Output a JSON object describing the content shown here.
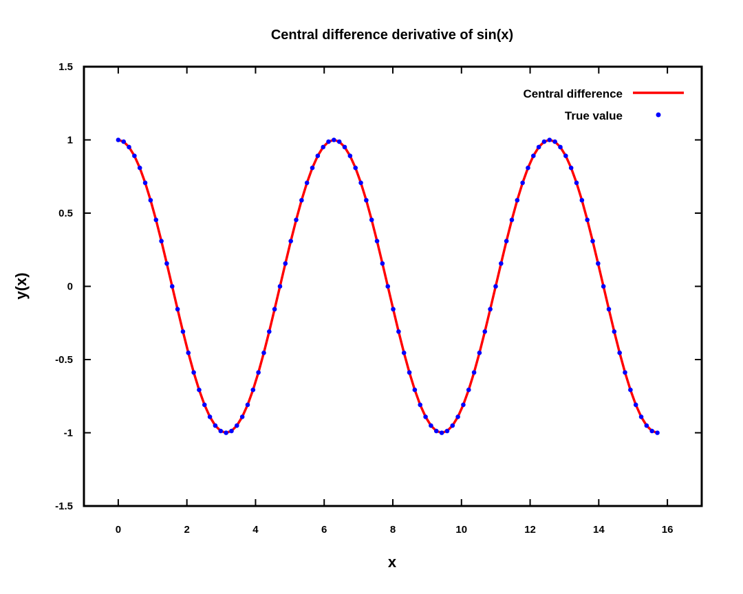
{
  "chart_data": {
    "type": "line",
    "title": "Central difference derivative of sin(x)",
    "xlabel": "x",
    "ylabel": "y(x)",
    "xlim": [
      -1,
      17
    ],
    "ylim": [
      -1.5,
      1.5
    ],
    "x_ticks": [
      "0",
      "2",
      "4",
      "6",
      "8",
      "10",
      "12",
      "14",
      "16"
    ],
    "y_ticks": [
      "1.5",
      "1",
      "0.5",
      "0",
      "-0.5",
      "-1",
      "-1.5"
    ],
    "grid": false,
    "legend_position": "top-right",
    "function_note": "y = cos(x) sampled over x from 0 to 5π (≈15.71)",
    "x_range": [
      0,
      15.708
    ],
    "series": [
      {
        "name": "Central difference",
        "style": "line",
        "color": "#ff0000",
        "x": [
          0,
          0.157,
          0.314,
          0.471,
          0.628,
          0.785,
          0.942,
          1.1,
          1.257,
          1.414,
          1.571,
          1.728,
          1.885,
          2.042,
          2.199,
          2.356,
          2.513,
          2.67,
          2.827,
          2.985,
          3.142,
          3.299,
          3.456,
          3.613,
          3.77,
          3.927,
          4.084,
          4.241,
          4.398,
          4.555,
          4.712,
          4.869,
          5.027,
          5.184,
          5.341,
          5.498,
          5.655,
          5.812,
          5.969,
          6.126,
          6.283,
          6.44,
          6.597,
          6.754,
          6.912,
          7.069,
          7.226,
          7.383,
          7.54,
          7.697,
          7.854,
          8.011,
          8.168,
          8.325,
          8.482,
          8.639,
          8.796,
          8.954,
          9.111,
          9.268,
          9.425,
          9.582,
          9.739,
          9.896,
          10.053,
          10.21,
          10.367,
          10.524,
          10.681,
          10.838,
          10.996,
          11.153,
          11.31,
          11.467,
          11.624,
          11.781,
          11.938,
          12.095,
          12.252,
          12.409,
          12.566,
          12.723,
          12.881,
          13.038,
          13.195,
          13.352,
          13.509,
          13.666,
          13.823,
          13.98,
          14.137,
          14.294,
          14.451,
          14.608,
          14.765,
          14.923,
          15.08,
          15.237,
          15.394,
          15.551,
          15.708
        ],
        "y": [
          1,
          0.988,
          0.951,
          0.891,
          0.809,
          0.707,
          0.588,
          0.454,
          0.309,
          0.156,
          0,
          -0.156,
          -0.309,
          -0.454,
          -0.588,
          -0.707,
          -0.809,
          -0.891,
          -0.951,
          -0.988,
          -1,
          -0.988,
          -0.951,
          -0.891,
          -0.809,
          -0.707,
          -0.588,
          -0.454,
          -0.309,
          -0.156,
          0,
          0.156,
          0.309,
          0.454,
          0.588,
          0.707,
          0.809,
          0.891,
          0.951,
          0.988,
          1,
          0.988,
          0.951,
          0.891,
          0.809,
          0.707,
          0.588,
          0.454,
          0.309,
          0.156,
          0,
          -0.156,
          -0.309,
          -0.454,
          -0.588,
          -0.707,
          -0.809,
          -0.891,
          -0.951,
          -0.988,
          -1,
          -0.988,
          -0.951,
          -0.891,
          -0.809,
          -0.707,
          -0.588,
          -0.454,
          -0.309,
          -0.156,
          0,
          0.156,
          0.309,
          0.454,
          0.588,
          0.707,
          0.809,
          0.891,
          0.951,
          0.988,
          1,
          0.988,
          0.951,
          0.891,
          0.809,
          0.707,
          0.588,
          0.454,
          0.309,
          0.156,
          0,
          -0.156,
          -0.309,
          -0.454,
          -0.588,
          -0.707,
          -0.809,
          -0.891,
          -0.951,
          -0.988,
          -1
        ]
      },
      {
        "name": "True value",
        "style": "points",
        "color": "#0000ff",
        "x": [
          0,
          0.157,
          0.314,
          0.471,
          0.628,
          0.785,
          0.942,
          1.1,
          1.257,
          1.414,
          1.571,
          1.728,
          1.885,
          2.042,
          2.199,
          2.356,
          2.513,
          2.67,
          2.827,
          2.985,
          3.142,
          3.299,
          3.456,
          3.613,
          3.77,
          3.927,
          4.084,
          4.241,
          4.398,
          4.555,
          4.712,
          4.869,
          5.027,
          5.184,
          5.341,
          5.498,
          5.655,
          5.812,
          5.969,
          6.126,
          6.283,
          6.44,
          6.597,
          6.754,
          6.912,
          7.069,
          7.226,
          7.383,
          7.54,
          7.697,
          7.854,
          8.011,
          8.168,
          8.325,
          8.482,
          8.639,
          8.796,
          8.954,
          9.111,
          9.268,
          9.425,
          9.582,
          9.739,
          9.896,
          10.053,
          10.21,
          10.367,
          10.524,
          10.681,
          10.838,
          10.996,
          11.153,
          11.31,
          11.467,
          11.624,
          11.781,
          11.938,
          12.095,
          12.252,
          12.409,
          12.566,
          12.723,
          12.881,
          13.038,
          13.195,
          13.352,
          13.509,
          13.666,
          13.823,
          13.98,
          14.137,
          14.294,
          14.451,
          14.608,
          14.765,
          14.923,
          15.08,
          15.237,
          15.394,
          15.551,
          15.708
        ],
        "y": [
          1,
          0.988,
          0.951,
          0.891,
          0.809,
          0.707,
          0.588,
          0.454,
          0.309,
          0.156,
          0,
          -0.156,
          -0.309,
          -0.454,
          -0.588,
          -0.707,
          -0.809,
          -0.891,
          -0.951,
          -0.988,
          -1,
          -0.988,
          -0.951,
          -0.891,
          -0.809,
          -0.707,
          -0.588,
          -0.454,
          -0.309,
          -0.156,
          0,
          0.156,
          0.309,
          0.454,
          0.588,
          0.707,
          0.809,
          0.891,
          0.951,
          0.988,
          1,
          0.988,
          0.951,
          0.891,
          0.809,
          0.707,
          0.588,
          0.454,
          0.309,
          0.156,
          0,
          -0.156,
          -0.309,
          -0.454,
          -0.588,
          -0.707,
          -0.809,
          -0.891,
          -0.951,
          -0.988,
          -1,
          -0.988,
          -0.951,
          -0.891,
          -0.809,
          -0.707,
          -0.588,
          -0.454,
          -0.309,
          -0.156,
          0,
          0.156,
          0.309,
          0.454,
          0.588,
          0.707,
          0.809,
          0.891,
          0.951,
          0.988,
          1,
          0.988,
          0.951,
          0.891,
          0.809,
          0.707,
          0.588,
          0.454,
          0.309,
          0.156,
          0,
          -0.156,
          -0.309,
          -0.454,
          -0.588,
          -0.707,
          -0.809,
          -0.891,
          -0.951,
          -0.988,
          -1
        ]
      }
    ]
  }
}
